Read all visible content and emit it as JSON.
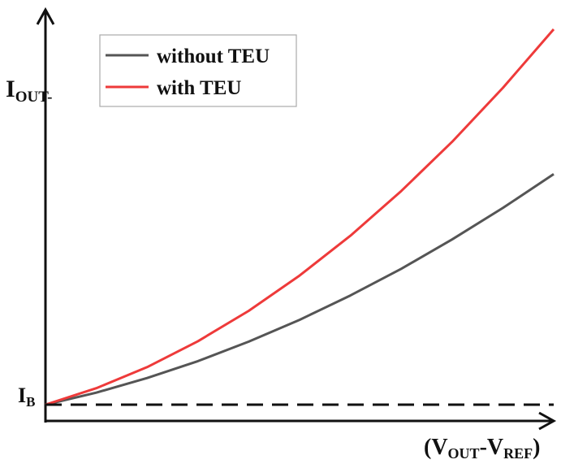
{
  "chart_data": {
    "type": "line",
    "x_label": {
      "main_open": "(V",
      "sub1": "OUT",
      "dash": "-V",
      "sub2": "REF",
      "close": ")"
    },
    "y_label": {
      "main": "I",
      "sub": "OUT-"
    },
    "baseline_label": {
      "main": "I",
      "sub": "B"
    },
    "legend": {
      "placement": "top-left"
    },
    "axis_ticks": false,
    "grid": false,
    "xlim": [
      0,
      1
    ],
    "ylim": [
      0,
      1
    ],
    "baseline_y": 0,
    "series": [
      {
        "name": "without TEU",
        "color": "#555555",
        "line_style": "solid",
        "x": [
          0,
          0.1,
          0.2,
          0.3,
          0.4,
          0.5,
          0.6,
          0.7,
          0.8,
          0.9,
          1.0
        ],
        "y": [
          0,
          0.032,
          0.071,
          0.116,
          0.168,
          0.226,
          0.291,
          0.362,
          0.44,
          0.524,
          0.614
        ]
      },
      {
        "name": "with TEU",
        "color": "#ee3a3a",
        "line_style": "solid",
        "x": [
          0,
          0.1,
          0.2,
          0.3,
          0.4,
          0.5,
          0.6,
          0.7,
          0.8,
          0.9,
          1.0
        ],
        "y": [
          0,
          0.044,
          0.1,
          0.169,
          0.25,
          0.344,
          0.45,
          0.569,
          0.7,
          0.844,
          1.0
        ]
      },
      {
        "name": "",
        "color": "#111111",
        "line_style": "dashed",
        "x": [
          0,
          1.0
        ],
        "y": [
          0,
          0
        ]
      }
    ]
  }
}
